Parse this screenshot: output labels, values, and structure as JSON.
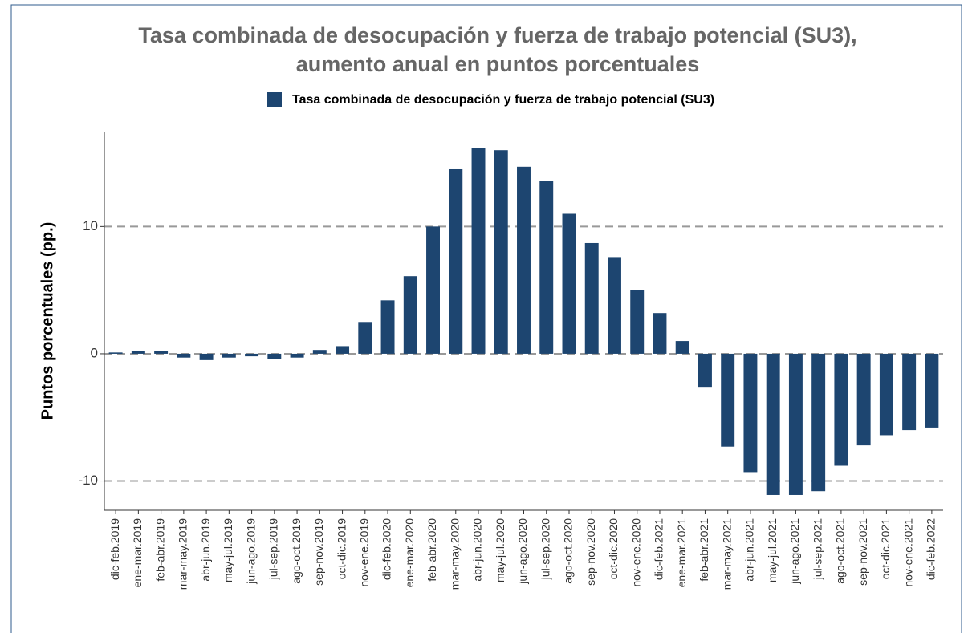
{
  "chart_data": {
    "type": "bar",
    "title": "Tasa combinada de desocupación y fuerza de trabajo potencial (SU3),",
    "subtitle": "aumento anual en puntos porcentuales",
    "y_label": "Puntos porcentuales (pp.)",
    "categories": [
      "dic-feb.2019",
      "ene-mar.2019",
      "feb-abr.2019",
      "mar-may.2019",
      "abr-jun.2019",
      "may-jul.2019",
      "jun-ago.2019",
      "jul-sep.2019",
      "ago-oct.2019",
      "sep-nov.2019",
      "oct-dic.2019",
      "nov-ene.2019",
      "dic-feb.2020",
      "ene-mar.2020",
      "feb-abr.2020",
      "mar-may.2020",
      "abr-jun.2020",
      "may-jul.2020",
      "jun-ago.2020",
      "jul-sep.2020",
      "ago-oct.2020",
      "sep-nov.2020",
      "oct-dic.2020",
      "nov-ene.2020",
      "dic-feb.2021",
      "ene-mar.2021",
      "feb-abr.2021",
      "mar-may.2021",
      "abr-jun.2021",
      "may-jul.2021",
      "jun-ago.2021",
      "jul-sep.2021",
      "ago-oct.2021",
      "sep-nov.2021",
      "oct-dic.2021",
      "nov-ene.2021",
      "dic-feb.2022"
    ],
    "series": [
      {
        "name": "Tasa combinada de desocupación y fuerza de trabajo potencial (SU3)",
        "color": "#1d4570",
        "values": [
          0.1,
          0.2,
          0.2,
          -0.3,
          -0.5,
          -0.3,
          -0.2,
          -0.4,
          -0.3,
          0.3,
          0.6,
          2.5,
          4.2,
          6.1,
          10.0,
          14.5,
          16.2,
          16.0,
          14.7,
          13.6,
          11.0,
          8.7,
          7.6,
          5.0,
          3.2,
          1.0,
          -2.6,
          -7.3,
          -9.3,
          -11.1,
          -11.1,
          -10.8,
          -8.8,
          -7.2,
          -6.4,
          -6.0,
          -5.8
        ]
      }
    ],
    "ylim": [
      -12.3,
      17.4
    ],
    "yticks": [
      -10,
      0,
      10
    ],
    "grid": true
  }
}
